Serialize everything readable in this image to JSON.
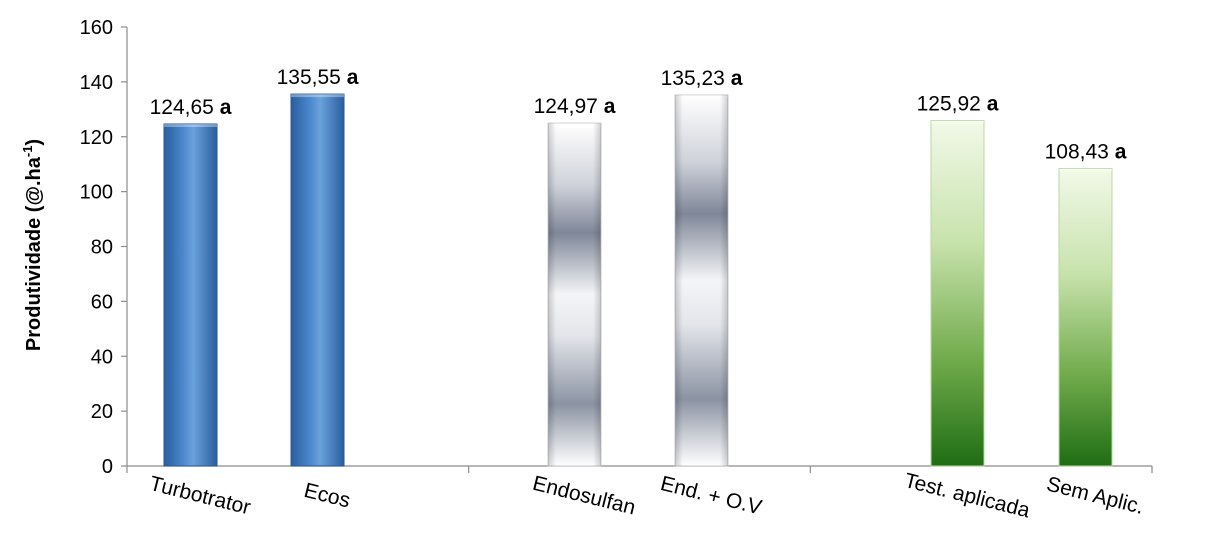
{
  "chart_data": {
    "type": "bar",
    "title": "",
    "xlabel": "",
    "ylabel": "Produtividade (@.ha",
    "ylabel_sup": "-1",
    "ylabel_close": ")",
    "ylim": [
      0,
      160
    ],
    "yticks": [
      0,
      20,
      40,
      60,
      80,
      100,
      120,
      140,
      160
    ],
    "grid": false,
    "categories": [
      "Turbotrator",
      "Ecos",
      "Endosulfan",
      "End. + O.V",
      "Test. aplicada",
      "Sem Aplic."
    ],
    "values": [
      124.65,
      135.55,
      124.97,
      135.23,
      125.92,
      108.43
    ],
    "value_labels": [
      "124,65",
      "135,55",
      "124,97",
      "135,23",
      "125,92",
      "108,43"
    ],
    "significance": [
      "a",
      "a",
      "a",
      "a",
      "a",
      "a"
    ],
    "groups": [
      {
        "members": [
          0,
          1
        ],
        "fill": "blue",
        "colors": [
          "#2e6ab3",
          "#5b9bd5"
        ]
      },
      {
        "members": [
          2,
          3
        ],
        "fill": "silver",
        "colors": [
          "#ffffff",
          "#7f8798"
        ]
      },
      {
        "members": [
          4,
          5
        ],
        "fill": "green",
        "colors": [
          "#ebf5dc",
          "#2d7a1e"
        ]
      }
    ]
  }
}
